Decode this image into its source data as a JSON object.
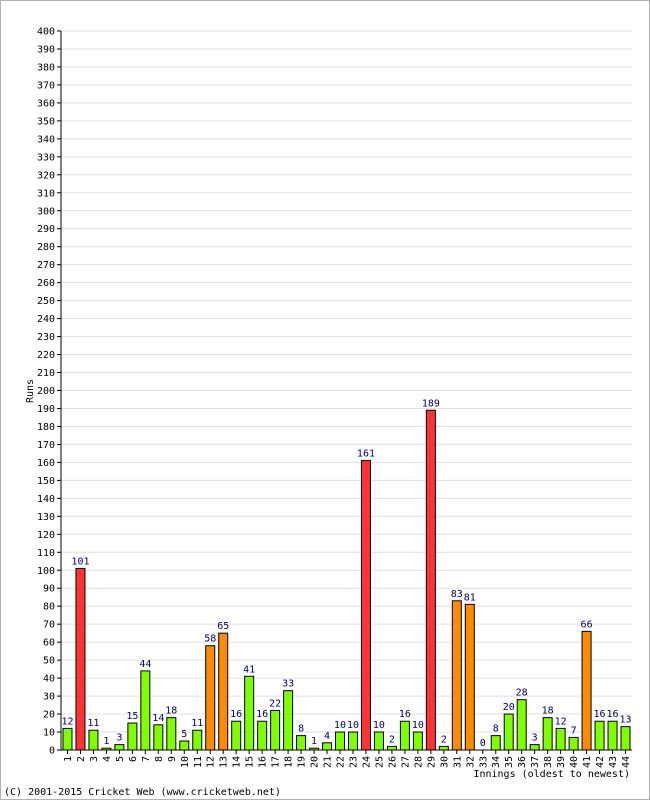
{
  "chart_data": {
    "type": "bar",
    "ylabel": "Runs",
    "xlabel": "Innings (oldest to newest)",
    "ylim": [
      0,
      400
    ],
    "ytick_step": 10,
    "grid": true,
    "categories": [
      "1",
      "2",
      "3",
      "4",
      "5",
      "6",
      "7",
      "8",
      "9",
      "10",
      "11",
      "12",
      "13",
      "14",
      "15",
      "16",
      "17",
      "18",
      "19",
      "20",
      "21",
      "22",
      "23",
      "24",
      "25",
      "26",
      "27",
      "28",
      "29",
      "30",
      "31",
      "32",
      "33",
      "34",
      "35",
      "36",
      "37",
      "38",
      "39",
      "40",
      "41",
      "42",
      "43",
      "44"
    ],
    "values": [
      12,
      101,
      11,
      1,
      3,
      15,
      44,
      14,
      18,
      5,
      11,
      58,
      65,
      16,
      41,
      16,
      22,
      33,
      8,
      1,
      4,
      10,
      10,
      161,
      10,
      2,
      16,
      10,
      189,
      2,
      83,
      81,
      0,
      8,
      20,
      28,
      3,
      18,
      12,
      7,
      66,
      16,
      16,
      13
    ],
    "colors": {
      "under_50": "#80ff00",
      "fifty": "#ff8c00",
      "hundred": "#ff3333",
      "outline": "#000000",
      "grid": "#e0e0e0",
      "label": "#000066"
    }
  },
  "footer": "(C) 2001-2015 Cricket Web (www.cricketweb.net)"
}
